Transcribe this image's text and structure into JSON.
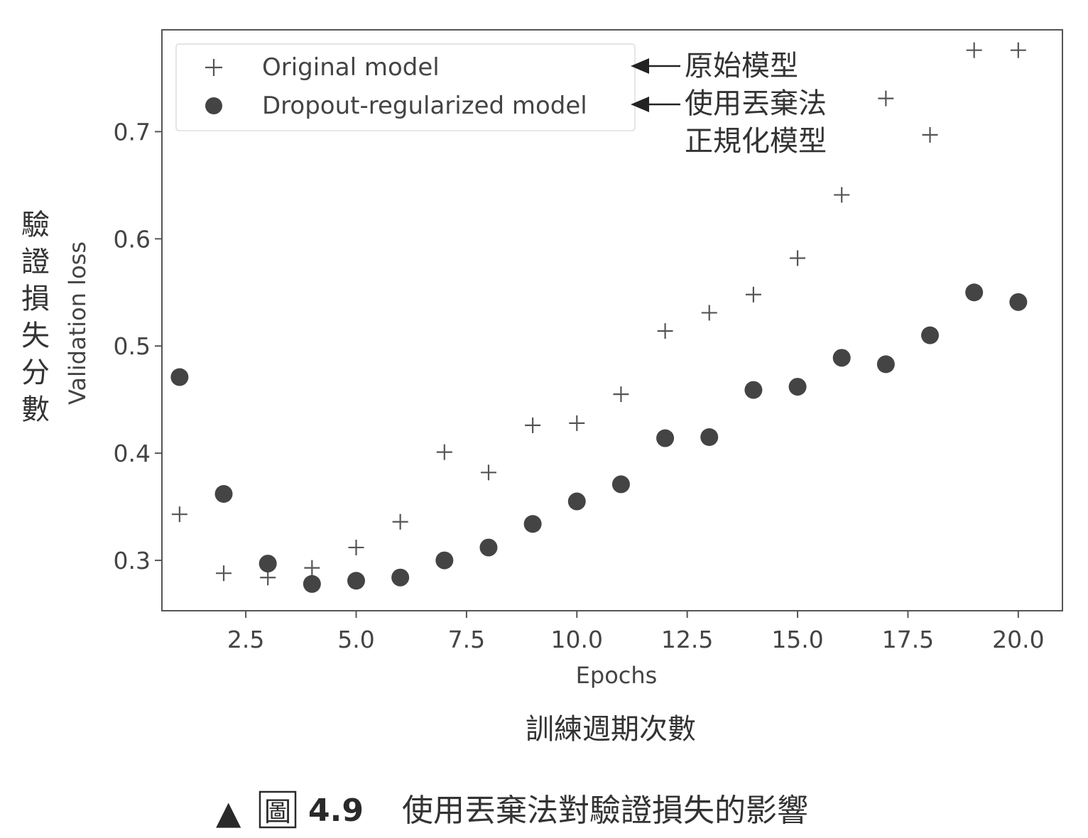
{
  "chart_data": {
    "type": "scatter",
    "xlabel": "Epochs",
    "ylabel": "Validation loss",
    "xlim": [
      0.6,
      21.0
    ],
    "ylim": [
      0.253,
      0.795
    ],
    "xticks": [
      "2.5",
      "5.0",
      "7.5",
      "10.0",
      "12.5",
      "15.0",
      "17.5",
      "20.0"
    ],
    "xtick_values": [
      2.5,
      5.0,
      7.5,
      10.0,
      12.5,
      15.0,
      17.5,
      20.0
    ],
    "yticks": [
      "0.3",
      "0.4",
      "0.5",
      "0.6",
      "0.7"
    ],
    "ytick_values": [
      0.3,
      0.4,
      0.5,
      0.6,
      0.7
    ],
    "legend_position": "top-left",
    "grid": false,
    "series": [
      {
        "name": "Original model",
        "marker": "plus",
        "color": "#555555",
        "x": [
          1,
          2,
          3,
          4,
          5,
          6,
          7,
          8,
          9,
          10,
          11,
          12,
          13,
          14,
          15,
          16,
          17,
          18,
          19,
          20
        ],
        "y": [
          0.343,
          0.288,
          0.284,
          0.293,
          0.312,
          0.336,
          0.401,
          0.382,
          0.426,
          0.428,
          0.455,
          0.514,
          0.531,
          0.548,
          0.582,
          0.641,
          0.731,
          0.697,
          0.776,
          0.776
        ]
      },
      {
        "name": "Dropout-regularized model",
        "marker": "circle",
        "color": "#444444",
        "x": [
          1,
          2,
          3,
          4,
          5,
          6,
          7,
          8,
          9,
          10,
          11,
          12,
          13,
          14,
          15,
          16,
          17,
          18,
          19,
          20
        ],
        "y": [
          0.471,
          0.362,
          0.297,
          0.278,
          0.281,
          0.284,
          0.3,
          0.312,
          0.334,
          0.355,
          0.371,
          0.414,
          0.415,
          0.459,
          0.462,
          0.489,
          0.483,
          0.51,
          0.55,
          0.541
        ]
      }
    ]
  },
  "annotations": {
    "original_zh": "原始模型",
    "dropout_zh_line1": "使用丟棄法",
    "dropout_zh_line2": "正規化模型",
    "ylabel_zh": "驗證損失分數",
    "xlabel_zh": "訓練週期次數"
  },
  "caption": {
    "marker": "▲",
    "fig_word": "圖",
    "number": "4.9",
    "text": "使用丟棄法對驗證損失的影響"
  }
}
